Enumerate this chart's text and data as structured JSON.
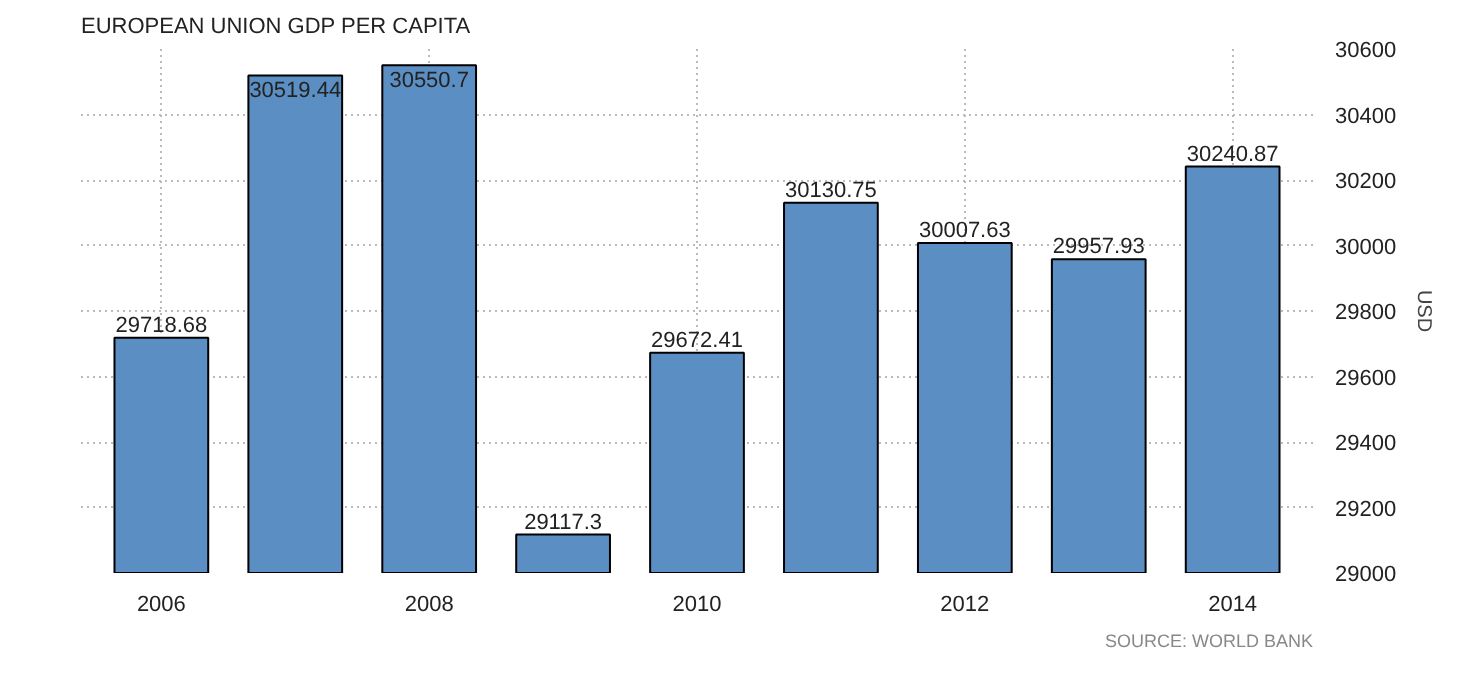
{
  "chart_data": {
    "type": "bar",
    "title": "EUROPEAN UNION GDP PER CAPITA",
    "ylabel": "USD",
    "categories": [
      "2006",
      null,
      "2008",
      null,
      "2010",
      null,
      "2012",
      null,
      "2014"
    ],
    "values": [
      29718.68,
      30519.44,
      30550.7,
      29117.3,
      29672.41,
      30130.75,
      30007.63,
      29957.93,
      30240.87
    ],
    "color": "#5b8fc3",
    "data_labels": true,
    "ylim": [
      29000,
      30600
    ],
    "yticks": [
      29000,
      29200,
      29400,
      29600,
      29800,
      30000,
      30200,
      30400,
      30600
    ],
    "grid": true,
    "annotations": [
      "SOURCE: WORLD BANK"
    ]
  }
}
